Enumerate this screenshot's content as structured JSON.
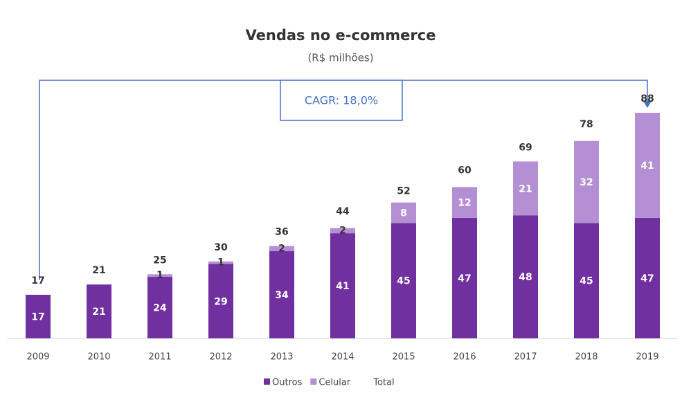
{
  "chart_data": {
    "type": "stacked_bar",
    "title": "Vendas no e-commerce",
    "subtitle": "(R$ milhões)",
    "annotation": "CAGR: 18,0%",
    "categories": [
      "2009",
      "2010",
      "2011",
      "2012",
      "2013",
      "2014",
      "2015",
      "2016",
      "2017",
      "2018",
      "2019"
    ],
    "series": [
      {
        "name": "Outros",
        "color": "#7030a0",
        "values": [
          17,
          21,
          24,
          29,
          34,
          41,
          45,
          47,
          48,
          45,
          47
        ]
      },
      {
        "name": "Celular",
        "color": "#b48fd4",
        "values": [
          null,
          null,
          1,
          1,
          2,
          2,
          8,
          12,
          21,
          32,
          41
        ]
      }
    ],
    "totals": {
      "name": "Total",
      "values": [
        17,
        21,
        25,
        30,
        36,
        44,
        52,
        60,
        69,
        78,
        88
      ]
    }
  }
}
